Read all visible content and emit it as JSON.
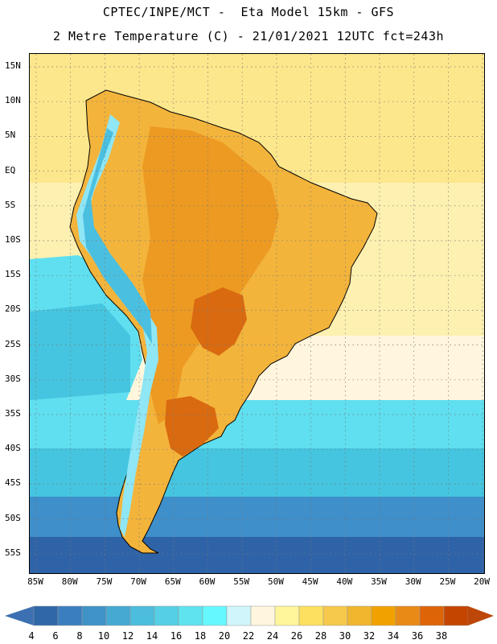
{
  "header": {
    "title_line1": "CPTEC/INPE/MCT -  Eta Model 15km - GFS",
    "title_line2": "2 Metre Temperature (C) - 21/01/2021 12UTC fct=243h"
  },
  "axes": {
    "lat_labels": [
      "15N",
      "10N",
      "5N",
      "EQ",
      "5S",
      "10S",
      "15S",
      "20S",
      "25S",
      "30S",
      "35S",
      "40S",
      "45S",
      "50S",
      "55S"
    ],
    "lon_labels": [
      "85W",
      "80W",
      "75W",
      "70W",
      "65W",
      "60W",
      "55W",
      "50W",
      "45W",
      "40W",
      "35W",
      "30W",
      "25W",
      "20W"
    ]
  },
  "colorbar": {
    "labels": [
      "4",
      "6",
      "8",
      "10",
      "12",
      "14",
      "16",
      "18",
      "20",
      "22",
      "24",
      "26",
      "28",
      "30",
      "32",
      "34",
      "36",
      "38"
    ],
    "colors": [
      "#2f67a8",
      "#3a7ebf",
      "#3f93c6",
      "#45a9d2",
      "#4cbddc",
      "#55cfe5",
      "#5fe3ef",
      "#66f8ff",
      "#d0f6fb",
      "#fff6dd",
      "#fff59a",
      "#fde060",
      "#f6c84b",
      "#f0b62e",
      "#f2a200",
      "#ea8a16",
      "#de6408",
      "#c44500"
    ],
    "low_color": "#3d70b2",
    "high_color": "#bd4708"
  },
  "map": {
    "ocean_colors": {
      "north_atlantic": "#fde78c",
      "tropical_ocean": "#fdf0b0",
      "subtropical_ocean": "#fff6dd",
      "temperate_ocean": "#5fdff0",
      "cool_ocean": "#45c5e0",
      "cold_ocean": "#3e8fca",
      "polar_ocean": "#2f63a8"
    },
    "land_colors": {
      "warm": "#f3b43c",
      "hot": "#ec9a22",
      "very_hot": "#d96a10",
      "andes_cold": "#4bbfe0",
      "andes_cool": "#8fe6f5"
    }
  }
}
